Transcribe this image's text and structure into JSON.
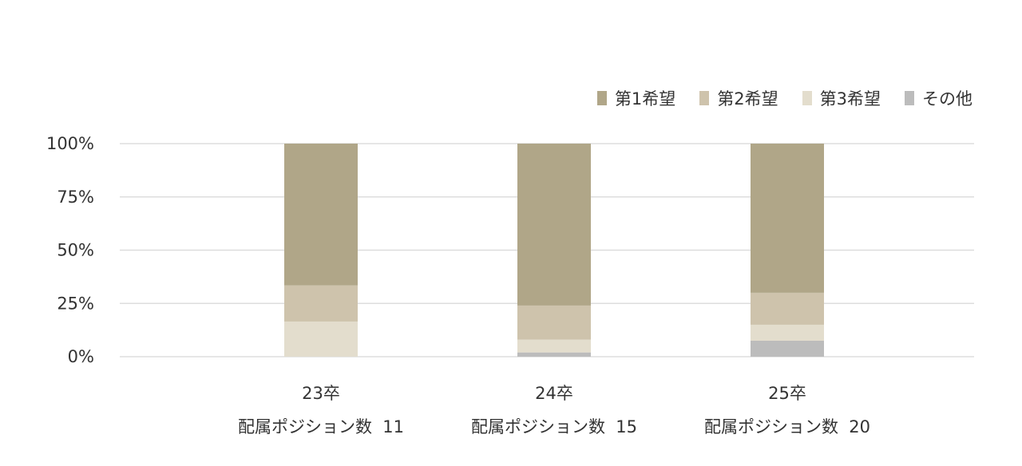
{
  "colors": {
    "first_choice": "#b0a688",
    "second_choice": "#cec3ac",
    "third_choice": "#e3ddcd",
    "other": "#bcbcbc",
    "grid": "#dddddd",
    "text": "#333333"
  },
  "legend": {
    "items": [
      {
        "label": "第1希望",
        "color": "#b0a688"
      },
      {
        "label": "第2希望",
        "color": "#cec3ac"
      },
      {
        "label": "第3希望",
        "color": "#e3ddcd"
      },
      {
        "label": "その他",
        "color": "#bcbcbc"
      }
    ]
  },
  "chart_data": {
    "type": "bar",
    "stacked": true,
    "categories": [
      "23卒",
      "24卒",
      "25卒"
    ],
    "category_sublabels": [
      "配属ポジション数  11",
      "配属ポジション数  15",
      "配属ポジション数  20"
    ],
    "series": [
      {
        "name": "その他",
        "values": [
          0,
          2,
          7.5
        ]
      },
      {
        "name": "第3希望",
        "values": [
          16.5,
          6,
          7.5
        ]
      },
      {
        "name": "第2希望",
        "values": [
          17,
          16,
          15
        ]
      },
      {
        "name": "第1希望",
        "values": [
          66.5,
          76,
          70
        ]
      }
    ],
    "ylim": [
      0,
      100
    ],
    "yticks": [
      "0%",
      "25%",
      "50%",
      "75%",
      "100%"
    ],
    "legend_position": "top-right",
    "grid": true
  }
}
